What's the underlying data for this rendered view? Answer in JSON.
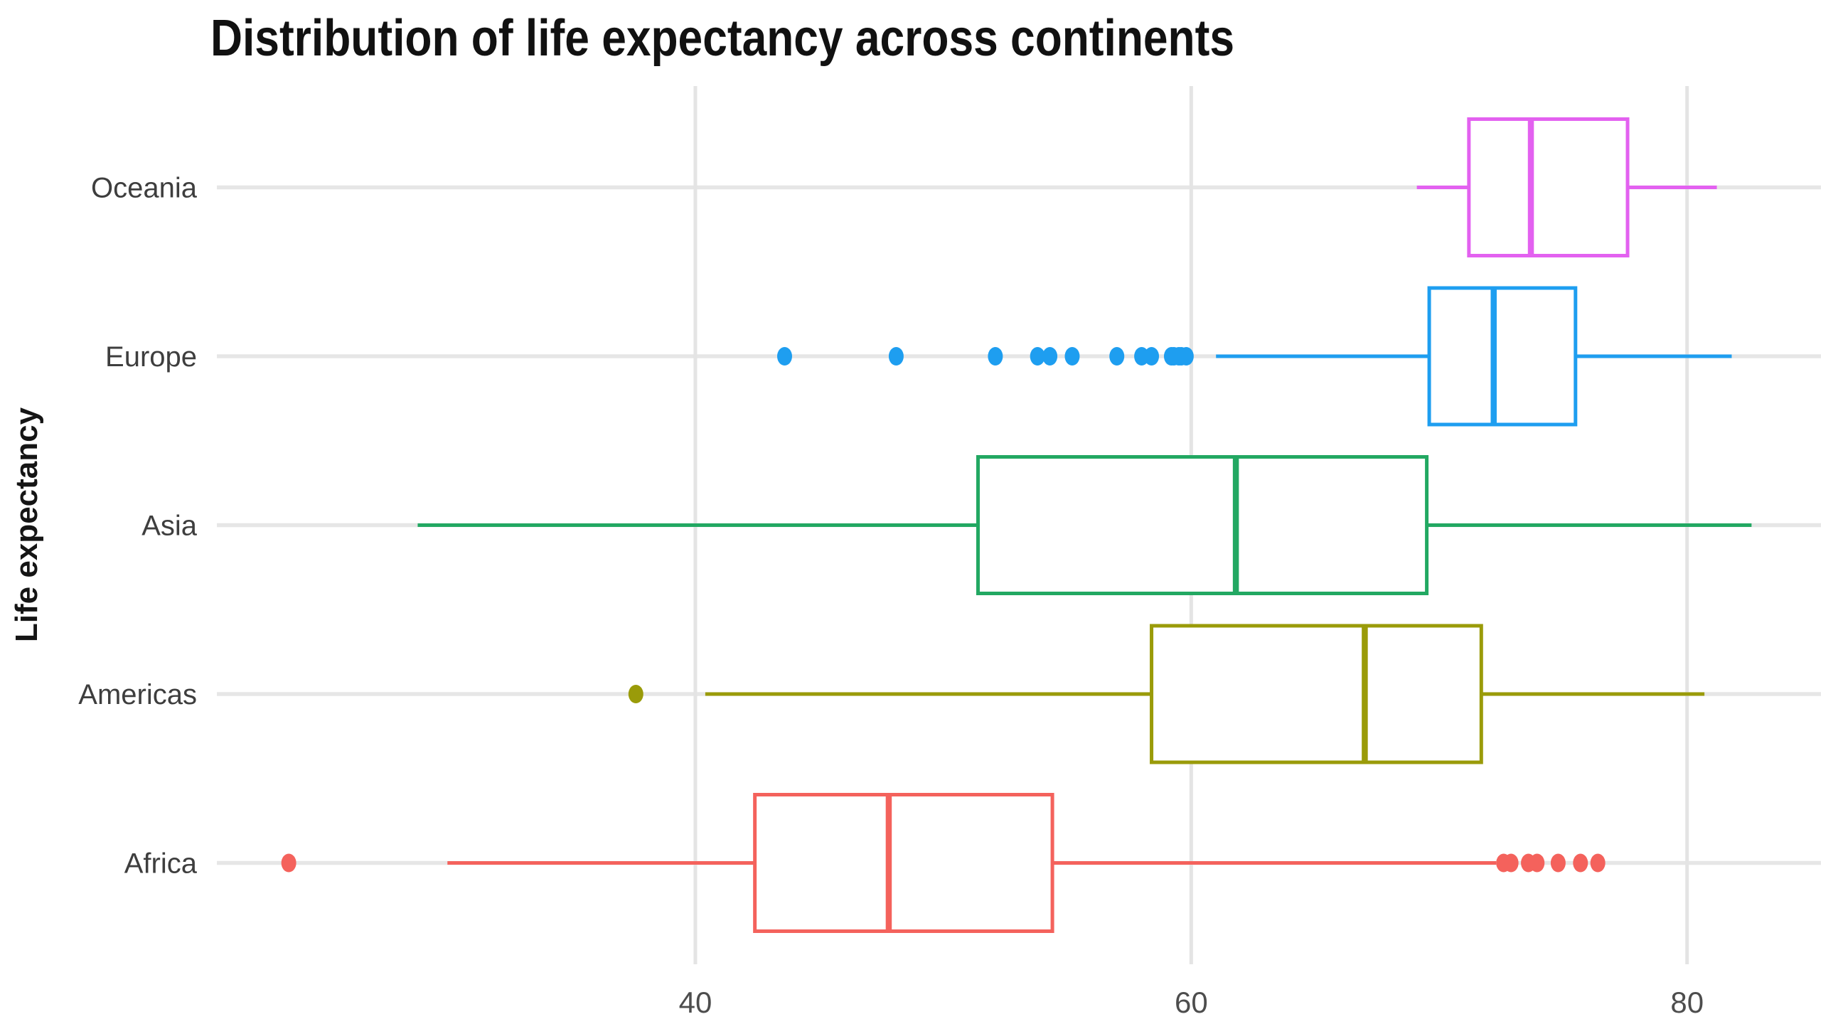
{
  "chart_data": {
    "type": "boxplot",
    "orientation": "horizontal",
    "title": "Distribution of life expectancy across continents",
    "xlabel": "",
    "ylabel": "Life expectancy",
    "x_ticks": [
      40,
      60,
      80
    ],
    "x_domain": [
      20.7,
      85.4
    ],
    "grid": true,
    "legend": "none",
    "categories_top_to_bottom": [
      "Oceania",
      "Europe",
      "Asia",
      "Americas",
      "Africa"
    ],
    "series": [
      {
        "name": "Oceania",
        "color": "#E361F0",
        "whisker_low": 69.1,
        "q1": 71.2,
        "median": 73.7,
        "q3": 77.6,
        "whisker_high": 81.2,
        "outliers": []
      },
      {
        "name": "Europe",
        "color": "#1E9EF0",
        "whisker_low": 61.0,
        "q1": 69.6,
        "median": 72.2,
        "q3": 75.5,
        "whisker_high": 81.8,
        "outliers": [
          43.6,
          48.1,
          52.1,
          53.8,
          54.3,
          55.2,
          57.0,
          58.0,
          58.4,
          59.2,
          59.3,
          59.5,
          59.6,
          59.8
        ]
      },
      {
        "name": "Asia",
        "color": "#22A862",
        "whisker_low": 28.8,
        "q1": 51.4,
        "median": 61.8,
        "q3": 69.5,
        "whisker_high": 82.6,
        "outliers": []
      },
      {
        "name": "Americas",
        "color": "#9A9B09",
        "whisker_low": 40.4,
        "q1": 58.4,
        "median": 67.0,
        "q3": 71.7,
        "whisker_high": 80.7,
        "outliers": [
          37.6
        ]
      },
      {
        "name": "Africa",
        "color": "#F4625C",
        "whisker_low": 30.0,
        "q1": 42.4,
        "median": 47.8,
        "q3": 54.4,
        "whisker_high": 72.3,
        "outliers": [
          23.6,
          72.6,
          72.9,
          73.6,
          73.95,
          74.8,
          75.7,
          76.4
        ]
      }
    ]
  }
}
